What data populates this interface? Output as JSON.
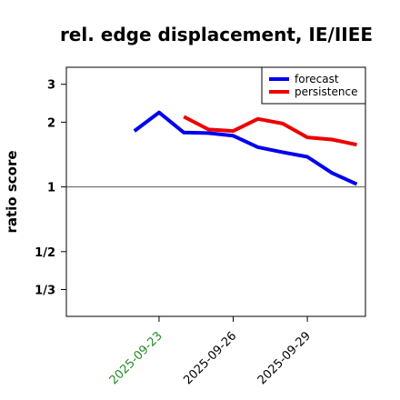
{
  "chart_data": {
    "type": "line",
    "title": "rel. edge displacement, IE/IIEE",
    "ylabel": "ratio score",
    "xlabel": "",
    "y_scale": "log",
    "y_ticks": [
      {
        "value": 3,
        "label": "3"
      },
      {
        "value": 2,
        "label": "2"
      },
      {
        "value": 1,
        "label": "1"
      },
      {
        "value": 0.5,
        "label": "1/2"
      },
      {
        "value": 0.3333,
        "label": "1/3"
      }
    ],
    "ylim": [
      0.25,
      3.6
    ],
    "x_ticks": [
      "2025-09-23",
      "2025-09-26",
      "2025-09-29"
    ],
    "x_tick_colors": [
      "#228B22",
      "#000000",
      "#000000"
    ],
    "xlim": [
      "2025-09-20",
      "2025-10-01"
    ],
    "reference_line": 1,
    "legend_position": "top-right",
    "series": [
      {
        "name": "forecast",
        "color": "#0000ee",
        "points": [
          {
            "x": "2025-09-22",
            "y": 1.82
          },
          {
            "x": "2025-09-23",
            "y": 2.22
          },
          {
            "x": "2025-09-24",
            "y": 1.79
          },
          {
            "x": "2025-09-25",
            "y": 1.78
          },
          {
            "x": "2025-09-26",
            "y": 1.73
          },
          {
            "x": "2025-09-27",
            "y": 1.53
          },
          {
            "x": "2025-09-28",
            "y": 1.45
          },
          {
            "x": "2025-09-29",
            "y": 1.38
          },
          {
            "x": "2025-09-30",
            "y": 1.16
          },
          {
            "x": "2025-10-01",
            "y": 1.03
          }
        ]
      },
      {
        "name": "persistence",
        "color": "#ee0000",
        "points": [
          {
            "x": "2025-09-24",
            "y": 2.12
          },
          {
            "x": "2025-09-25",
            "y": 1.85
          },
          {
            "x": "2025-09-26",
            "y": 1.82
          },
          {
            "x": "2025-09-27",
            "y": 2.07
          },
          {
            "x": "2025-09-28",
            "y": 1.97
          },
          {
            "x": "2025-09-29",
            "y": 1.7
          },
          {
            "x": "2025-09-30",
            "y": 1.66
          },
          {
            "x": "2025-10-01",
            "y": 1.57
          }
        ]
      }
    ]
  }
}
